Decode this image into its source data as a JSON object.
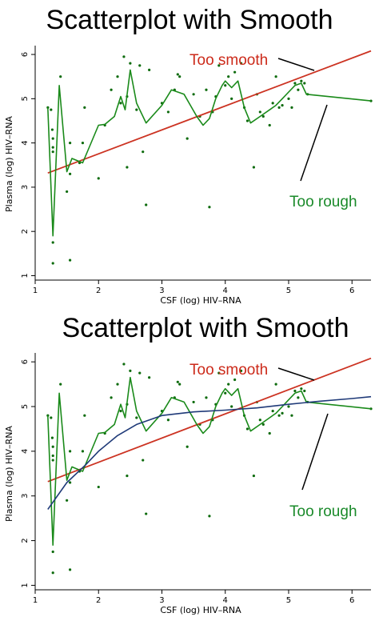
{
  "colors": {
    "points": "#0d6b0d",
    "rough": "#1a8a1a",
    "linear": "#cc3322",
    "lowess": "#1f3a78",
    "red_text": "#cc2a1a",
    "green_text": "#1a8a2a"
  },
  "chart_data": [
    {
      "type": "scatter",
      "title": "Scatterplot with Smooth",
      "xlabel": "CSF (log) HIV–RNA",
      "ylabel": "Plasma (log) HIV–RNA",
      "xlim": [
        1,
        6.3
      ],
      "ylim": [
        0.9,
        6.2
      ],
      "xticks": [
        "1",
        "2",
        "3",
        "4",
        "5",
        "6"
      ],
      "yticks": [
        "1",
        "2",
        "3",
        "4",
        "5",
        "6"
      ],
      "annotations": [
        "Too smooth",
        "Too rough"
      ],
      "points": [
        [
          1.2,
          4.8
        ],
        [
          1.25,
          4.75
        ],
        [
          1.27,
          4.3
        ],
        [
          1.28,
          4.1
        ],
        [
          1.28,
          3.9
        ],
        [
          1.28,
          3.8
        ],
        [
          1.28,
          1.75
        ],
        [
          1.28,
          1.28
        ],
        [
          1.4,
          5.5
        ],
        [
          1.5,
          2.9
        ],
        [
          1.55,
          3.3
        ],
        [
          1.55,
          1.35
        ],
        [
          1.55,
          4.0
        ],
        [
          1.7,
          3.55
        ],
        [
          1.75,
          4.0
        ],
        [
          1.78,
          4.8
        ],
        [
          2.0,
          3.2
        ],
        [
          2.1,
          4.4
        ],
        [
          2.2,
          5.2
        ],
        [
          2.3,
          5.5
        ],
        [
          2.35,
          4.9
        ],
        [
          2.4,
          5.95
        ],
        [
          2.45,
          3.45
        ],
        [
          2.45,
          5.05
        ],
        [
          2.5,
          5.8
        ],
        [
          2.6,
          4.75
        ],
        [
          2.65,
          5.75
        ],
        [
          2.7,
          3.8
        ],
        [
          2.75,
          2.6
        ],
        [
          2.8,
          5.65
        ],
        [
          3.0,
          4.9
        ],
        [
          3.1,
          4.7
        ],
        [
          3.2,
          5.2
        ],
        [
          3.25,
          5.55
        ],
        [
          3.28,
          5.5
        ],
        [
          3.4,
          4.1
        ],
        [
          3.5,
          5.1
        ],
        [
          3.6,
          4.6
        ],
        [
          3.7,
          5.2
        ],
        [
          3.75,
          2.55
        ],
        [
          3.8,
          4.7
        ],
        [
          3.85,
          5.05
        ],
        [
          3.9,
          5.75
        ],
        [
          4.0,
          5.3
        ],
        [
          4.05,
          5.5
        ],
        [
          4.1,
          5.0
        ],
        [
          4.15,
          5.6
        ],
        [
          4.25,
          5.8
        ],
        [
          4.3,
          4.8
        ],
        [
          4.35,
          4.5
        ],
        [
          4.45,
          3.45
        ],
        [
          4.5,
          5.1
        ],
        [
          4.55,
          4.7
        ],
        [
          4.6,
          4.6
        ],
        [
          4.7,
          4.4
        ],
        [
          4.75,
          4.9
        ],
        [
          4.8,
          5.5
        ],
        [
          4.85,
          4.8
        ],
        [
          4.9,
          4.85
        ],
        [
          5.0,
          5.0
        ],
        [
          5.05,
          4.8
        ],
        [
          5.1,
          5.35
        ],
        [
          5.15,
          5.2
        ],
        [
          5.2,
          5.4
        ],
        [
          5.25,
          5.35
        ],
        [
          5.3,
          5.1
        ],
        [
          6.3,
          4.95
        ]
      ],
      "series": [
        {
          "name": "Too smooth",
          "style": "linear",
          "values": [
            [
              1.2,
              3.32
            ],
            [
              6.3,
              6.08
            ]
          ]
        },
        {
          "name": "Too rough",
          "style": "rough",
          "values": [
            [
              1.2,
              4.8
            ],
            [
              1.28,
              1.9
            ],
            [
              1.38,
              5.3
            ],
            [
              1.5,
              3.35
            ],
            [
              1.58,
              3.65
            ],
            [
              1.75,
              3.55
            ],
            [
              2.0,
              4.4
            ],
            [
              2.1,
              4.42
            ],
            [
              2.25,
              4.6
            ],
            [
              2.35,
              5.05
            ],
            [
              2.42,
              4.75
            ],
            [
              2.5,
              5.65
            ],
            [
              2.6,
              4.9
            ],
            [
              2.75,
              4.45
            ],
            [
              3.0,
              4.85
            ],
            [
              3.15,
              5.2
            ],
            [
              3.35,
              5.1
            ],
            [
              3.55,
              4.6
            ],
            [
              3.65,
              4.4
            ],
            [
              3.75,
              4.55
            ],
            [
              3.85,
              5.0
            ],
            [
              3.95,
              5.3
            ],
            [
              4.0,
              5.4
            ],
            [
              4.1,
              5.25
            ],
            [
              4.2,
              5.4
            ],
            [
              4.3,
              4.8
            ],
            [
              4.4,
              4.45
            ],
            [
              4.55,
              4.6
            ],
            [
              4.7,
              4.75
            ],
            [
              4.8,
              4.85
            ],
            [
              4.9,
              5.0
            ],
            [
              5.0,
              5.15
            ],
            [
              5.1,
              5.3
            ],
            [
              5.2,
              5.35
            ],
            [
              5.28,
              5.1
            ],
            [
              6.3,
              4.95
            ]
          ]
        }
      ]
    },
    {
      "type": "scatter",
      "title": "Scatterplot with Smooth",
      "xlabel": "CSF (log) HIV–RNA",
      "ylabel": "Plasma (log) HIV–RNA",
      "xlim": [
        1,
        6.3
      ],
      "ylim": [
        0.9,
        6.2
      ],
      "xticks": [
        "1",
        "2",
        "3",
        "4",
        "5",
        "6"
      ],
      "yticks": [
        "1",
        "2",
        "3",
        "4",
        "5",
        "6"
      ],
      "annotations": [
        "Too smooth",
        "Too rough"
      ],
      "points": [
        [
          1.2,
          4.8
        ],
        [
          1.25,
          4.75
        ],
        [
          1.27,
          4.3
        ],
        [
          1.28,
          4.1
        ],
        [
          1.28,
          3.9
        ],
        [
          1.28,
          3.8
        ],
        [
          1.28,
          1.75
        ],
        [
          1.28,
          1.28
        ],
        [
          1.4,
          5.5
        ],
        [
          1.5,
          2.9
        ],
        [
          1.55,
          3.3
        ],
        [
          1.55,
          1.35
        ],
        [
          1.55,
          4.0
        ],
        [
          1.7,
          3.55
        ],
        [
          1.75,
          4.0
        ],
        [
          1.78,
          4.8
        ],
        [
          2.0,
          3.2
        ],
        [
          2.1,
          4.4
        ],
        [
          2.2,
          5.2
        ],
        [
          2.3,
          5.5
        ],
        [
          2.35,
          4.9
        ],
        [
          2.4,
          5.95
        ],
        [
          2.45,
          3.45
        ],
        [
          2.45,
          5.05
        ],
        [
          2.5,
          5.8
        ],
        [
          2.6,
          4.75
        ],
        [
          2.65,
          5.75
        ],
        [
          2.7,
          3.8
        ],
        [
          2.75,
          2.6
        ],
        [
          2.8,
          5.65
        ],
        [
          3.0,
          4.9
        ],
        [
          3.1,
          4.7
        ],
        [
          3.2,
          5.2
        ],
        [
          3.25,
          5.55
        ],
        [
          3.28,
          5.5
        ],
        [
          3.4,
          4.1
        ],
        [
          3.5,
          5.1
        ],
        [
          3.6,
          4.6
        ],
        [
          3.7,
          5.2
        ],
        [
          3.75,
          2.55
        ],
        [
          3.8,
          4.7
        ],
        [
          3.85,
          5.05
        ],
        [
          3.9,
          5.75
        ],
        [
          4.0,
          5.3
        ],
        [
          4.05,
          5.5
        ],
        [
          4.1,
          5.0
        ],
        [
          4.15,
          5.6
        ],
        [
          4.25,
          5.8
        ],
        [
          4.3,
          4.8
        ],
        [
          4.35,
          4.5
        ],
        [
          4.45,
          3.45
        ],
        [
          4.5,
          5.1
        ],
        [
          4.55,
          4.7
        ],
        [
          4.6,
          4.6
        ],
        [
          4.7,
          4.4
        ],
        [
          4.75,
          4.9
        ],
        [
          4.8,
          5.5
        ],
        [
          4.85,
          4.8
        ],
        [
          4.9,
          4.85
        ],
        [
          5.0,
          5.0
        ],
        [
          5.05,
          4.8
        ],
        [
          5.1,
          5.35
        ],
        [
          5.15,
          5.2
        ],
        [
          5.2,
          5.4
        ],
        [
          5.25,
          5.35
        ],
        [
          5.3,
          5.1
        ],
        [
          6.3,
          4.95
        ]
      ],
      "series": [
        {
          "name": "Too smooth",
          "style": "linear",
          "values": [
            [
              1.2,
              3.32
            ],
            [
              6.3,
              6.08
            ]
          ]
        },
        {
          "name": "Too rough",
          "style": "rough",
          "values": [
            [
              1.2,
              4.8
            ],
            [
              1.28,
              1.9
            ],
            [
              1.38,
              5.3
            ],
            [
              1.5,
              3.35
            ],
            [
              1.58,
              3.65
            ],
            [
              1.75,
              3.55
            ],
            [
              2.0,
              4.4
            ],
            [
              2.1,
              4.42
            ],
            [
              2.25,
              4.6
            ],
            [
              2.35,
              5.05
            ],
            [
              2.42,
              4.75
            ],
            [
              2.5,
              5.65
            ],
            [
              2.6,
              4.9
            ],
            [
              2.75,
              4.45
            ],
            [
              3.0,
              4.85
            ],
            [
              3.15,
              5.2
            ],
            [
              3.35,
              5.1
            ],
            [
              3.55,
              4.6
            ],
            [
              3.65,
              4.4
            ],
            [
              3.75,
              4.55
            ],
            [
              3.85,
              5.0
            ],
            [
              3.95,
              5.3
            ],
            [
              4.0,
              5.4
            ],
            [
              4.1,
              5.25
            ],
            [
              4.2,
              5.4
            ],
            [
              4.3,
              4.8
            ],
            [
              4.4,
              4.45
            ],
            [
              4.55,
              4.6
            ],
            [
              4.7,
              4.75
            ],
            [
              4.8,
              4.85
            ],
            [
              4.9,
              5.0
            ],
            [
              5.0,
              5.15
            ],
            [
              5.1,
              5.3
            ],
            [
              5.2,
              5.35
            ],
            [
              5.28,
              5.1
            ],
            [
              6.3,
              4.95
            ]
          ]
        },
        {
          "style": "lowess",
          "values": [
            [
              1.2,
              2.7
            ],
            [
              1.5,
              3.3
            ],
            [
              1.8,
              3.7
            ],
            [
              2.0,
              4.0
            ],
            [
              2.3,
              4.35
            ],
            [
              2.6,
              4.6
            ],
            [
              3.0,
              4.8
            ],
            [
              3.5,
              4.88
            ],
            [
              4.0,
              4.92
            ],
            [
              4.5,
              4.97
            ],
            [
              5.0,
              5.05
            ],
            [
              5.5,
              5.12
            ],
            [
              6.0,
              5.18
            ],
            [
              6.3,
              5.22
            ]
          ]
        }
      ]
    }
  ]
}
